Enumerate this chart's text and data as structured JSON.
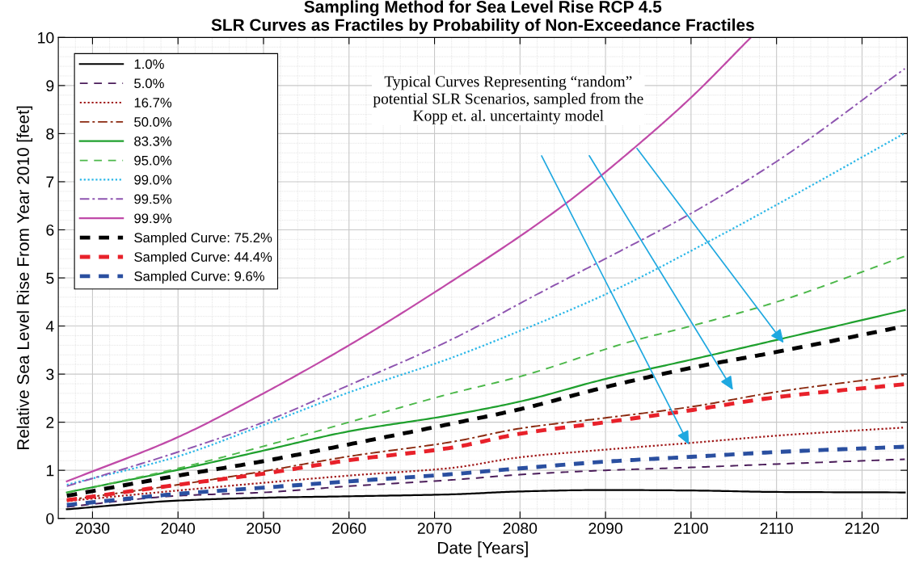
{
  "chart_data": {
    "type": "line",
    "title": "Sampling Method for Sea Level Rise RCP 4.5\nSLR Curves as Fractiles by Probability of Non-Exceedance Fractiles",
    "xlabel": "Date [Years]",
    "ylabel": "Relative Sea Level Rise From Year 2010 [feet]",
    "xlim": [
      2026,
      2125.3
    ],
    "ylim": [
      0,
      10
    ],
    "xticks": [
      2030,
      2040,
      2050,
      2060,
      2070,
      2080,
      2090,
      2100,
      2110,
      2120
    ],
    "yticks": [
      0,
      1,
      2,
      3,
      4,
      5,
      6,
      7,
      8,
      9,
      10
    ],
    "grid": true,
    "legend": "top left",
    "marker": "none",
    "series": [
      {
        "name": "1.0%",
        "color": "#000000",
        "line_style": "solid",
        "x": [
          2027,
          2040,
          2050,
          2060,
          2072,
          2080,
          2090,
          2100,
          2110,
          2125
        ],
        "values": [
          0.19,
          0.37,
          0.43,
          0.46,
          0.5,
          0.56,
          0.59,
          0.58,
          0.55,
          0.54
        ]
      },
      {
        "name": "5.0%",
        "color": "#4b1d5a",
        "line_style": "dashed",
        "x": [
          2027,
          2040,
          2050,
          2060,
          2072,
          2080,
          2090,
          2100,
          2110,
          2125
        ],
        "values": [
          0.24,
          0.47,
          0.54,
          0.67,
          0.8,
          0.91,
          1.0,
          1.06,
          1.13,
          1.23
        ]
      },
      {
        "name": "16.7%",
        "color": "#a01818",
        "line_style": "dotted",
        "x": [
          2027,
          2040,
          2050,
          2060,
          2072,
          2080,
          2090,
          2100,
          2110,
          2125
        ],
        "values": [
          0.36,
          0.58,
          0.74,
          0.89,
          1.05,
          1.27,
          1.43,
          1.57,
          1.72,
          1.89
        ]
      },
      {
        "name": "50.0%",
        "color": "#8b2a10",
        "line_style": "dashdot",
        "x": [
          2027,
          2040,
          2050,
          2060,
          2072,
          2080,
          2090,
          2100,
          2110,
          2125
        ],
        "values": [
          0.38,
          0.7,
          0.98,
          1.29,
          1.59,
          1.87,
          2.09,
          2.32,
          2.63,
          2.98
        ]
      },
      {
        "name": "83.3%",
        "color": "#1fa02e",
        "line_style": "solid",
        "x": [
          2027,
          2040,
          2050,
          2060,
          2072,
          2080,
          2090,
          2100,
          2110,
          2125
        ],
        "values": [
          0.54,
          1.01,
          1.41,
          1.81,
          2.15,
          2.43,
          2.9,
          3.3,
          3.71,
          4.33
        ]
      },
      {
        "name": "95.0%",
        "color": "#4cb84a",
        "line_style": "dashed",
        "x": [
          2027,
          2040,
          2050,
          2060,
          2072,
          2080,
          2093,
          2100,
          2110,
          2125
        ],
        "values": [
          0.53,
          1.04,
          1.5,
          2.0,
          2.6,
          2.95,
          3.68,
          4.0,
          4.5,
          5.45
        ]
      },
      {
        "name": "99.0%",
        "color": "#2ab7e8",
        "line_style": "dotted",
        "x": [
          2027,
          2040,
          2050,
          2060,
          2072,
          2080,
          2090,
          2102,
          2110,
          2125
        ],
        "values": [
          0.7,
          1.29,
          1.94,
          2.62,
          3.34,
          3.9,
          4.66,
          5.75,
          6.52,
          8.01
        ]
      },
      {
        "name": "99.5%",
        "color": "#8e55b0",
        "line_style": "dashdot",
        "x": [
          2027,
          2040,
          2050,
          2060,
          2072,
          2082,
          2090,
          2100,
          2110,
          2125
        ],
        "values": [
          0.67,
          1.38,
          2.0,
          2.77,
          3.72,
          4.66,
          5.4,
          6.34,
          7.42,
          9.35
        ]
      },
      {
        "name": "99.9%",
        "color": "#c04aa8",
        "line_style": "solid",
        "x": [
          2027,
          2040,
          2050,
          2060,
          2070,
          2085,
          2094,
          2100,
          2107
        ],
        "values": [
          0.77,
          1.69,
          2.6,
          3.6,
          4.7,
          6.5,
          7.8,
          8.75,
          10
        ]
      },
      {
        "name": "Sampled Curve: 75.2%",
        "color": "#000000",
        "line_style": "longdash",
        "x": [
          2027,
          2040,
          2050,
          2060,
          2072,
          2080,
          2090,
          2100,
          2110,
          2124
        ],
        "values": [
          0.47,
          0.89,
          1.19,
          1.54,
          1.97,
          2.27,
          2.73,
          3.13,
          3.46,
          3.96
        ]
      },
      {
        "name": "Sampled Curve: 44.4%",
        "color": "#e8212a",
        "line_style": "longdash",
        "x": [
          2027,
          2040,
          2050,
          2060,
          2072,
          2080,
          2090,
          2100,
          2110,
          2125
        ],
        "values": [
          0.38,
          0.7,
          0.93,
          1.21,
          1.47,
          1.76,
          2.0,
          2.25,
          2.52,
          2.79
        ]
      },
      {
        "name": "Sampled Curve: 9.6%",
        "color": "#2a4fa0",
        "line_style": "longdash",
        "x": [
          2027,
          2040,
          2050,
          2060,
          2072,
          2080,
          2090,
          2100,
          2110,
          2125
        ],
        "values": [
          0.28,
          0.51,
          0.64,
          0.77,
          0.92,
          1.04,
          1.18,
          1.28,
          1.38,
          1.49
        ]
      }
    ],
    "annotations": [
      "Typical Curves Representing “random”\npotential SLR Scenarios, sampled from the\nKopp et. al. uncertainty model"
    ]
  }
}
